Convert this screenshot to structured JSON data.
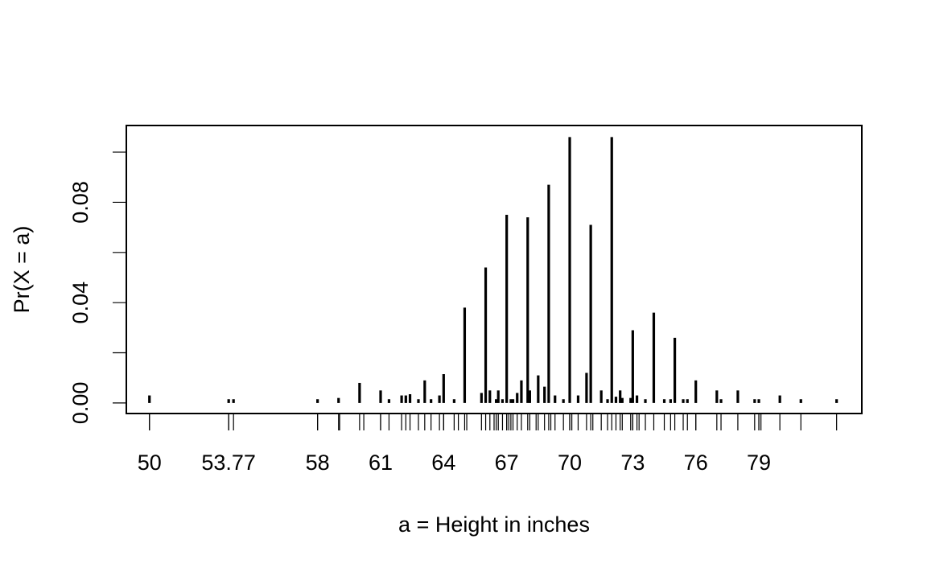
{
  "chart_data": {
    "type": "bar",
    "title": "",
    "xlabel": "a = Height in inches",
    "ylabel": "Pr(X = a)",
    "xlim": [
      48.9,
      83.9
    ],
    "ylim": [
      -0.0042,
      0.1106
    ],
    "x_ticks": [
      {
        "value": 50,
        "label": "50"
      },
      {
        "value": 53.77,
        "label": "53.77"
      },
      {
        "value": 58,
        "label": "58"
      },
      {
        "value": 61,
        "label": "61"
      },
      {
        "value": 64,
        "label": "64"
      },
      {
        "value": 67,
        "label": "67"
      },
      {
        "value": 70,
        "label": "70"
      },
      {
        "value": 73,
        "label": "73"
      },
      {
        "value": 76,
        "label": "76"
      },
      {
        "value": 79,
        "label": "79"
      }
    ],
    "y_ticks": [
      {
        "value": 0.0,
        "label": "0.00"
      },
      {
        "value": 0.02,
        "label": ""
      },
      {
        "value": 0.04,
        "label": "0.04"
      },
      {
        "value": 0.06,
        "label": ""
      },
      {
        "value": 0.08,
        "label": "0.08"
      },
      {
        "value": 0.1,
        "label": ""
      }
    ],
    "grid": false,
    "legend": "none",
    "series": [
      {
        "x": [
          50,
          53.77,
          54,
          58,
          59,
          60,
          61,
          61.4,
          62,
          62.2,
          62.4,
          62.8,
          63.1,
          63.4,
          63.8,
          64,
          64.5,
          65,
          65.8,
          66,
          66.2,
          66.5,
          66.6,
          66.8,
          67,
          67.2,
          67.3,
          67.5,
          67.7,
          68,
          68.1,
          68.5,
          68.8,
          69,
          69.3,
          69.7,
          70,
          70.4,
          70.8,
          71,
          71.5,
          71.8,
          72,
          72.2,
          72.4,
          72.5,
          72.9,
          73,
          73.2,
          73.6,
          74,
          74.5,
          74.8,
          75,
          75.4,
          75.6,
          76,
          77,
          77.2,
          78,
          78.8,
          79,
          80,
          81,
          82.7
        ],
        "y": [
          0.003,
          0.0015,
          0.0015,
          0.0015,
          0.002,
          0.008,
          0.005,
          0.0015,
          0.003,
          0.003,
          0.0035,
          0.0015,
          0.009,
          0.0015,
          0.003,
          0.0115,
          0.0015,
          0.038,
          0.004,
          0.054,
          0.005,
          0.0015,
          0.005,
          0.0015,
          0.075,
          0.0015,
          0.0015,
          0.004,
          0.009,
          0.074,
          0.005,
          0.011,
          0.0065,
          0.087,
          0.003,
          0.0015,
          0.106,
          0.003,
          0.012,
          0.071,
          0.005,
          0.0015,
          0.106,
          0.0025,
          0.005,
          0.002,
          0.002,
          0.029,
          0.003,
          0.0015,
          0.036,
          0.0015,
          0.0015,
          0.026,
          0.0015,
          0.0015,
          0.009,
          0.005,
          0.0015,
          0.005,
          0.0015,
          0.0015,
          0.003,
          0.0015,
          0.0015
        ]
      }
    ],
    "rug": [
      50,
      53.77,
      54,
      58,
      59,
      59.05,
      60,
      60.2,
      61,
      61.4,
      62,
      62.2,
      62.4,
      62.8,
      63.1,
      63.4,
      63.8,
      64,
      64.5,
      64.7,
      65,
      65.1,
      65.8,
      66,
      66.2,
      66.4,
      66.5,
      66.6,
      66.8,
      67,
      67.1,
      67.2,
      67.3,
      67.5,
      67.7,
      68,
      68.1,
      68.4,
      68.5,
      68.8,
      69,
      69.1,
      69.3,
      69.7,
      70,
      70.1,
      70.4,
      70.8,
      71,
      71.1,
      71.5,
      71.8,
      72,
      72.2,
      72.4,
      72.5,
      72.9,
      73,
      73.2,
      73.3,
      73.6,
      74,
      74.5,
      74.8,
      75,
      75.4,
      75.6,
      76,
      77,
      77.2,
      78,
      78.8,
      79,
      79.1,
      80,
      81,
      82.7
    ]
  }
}
